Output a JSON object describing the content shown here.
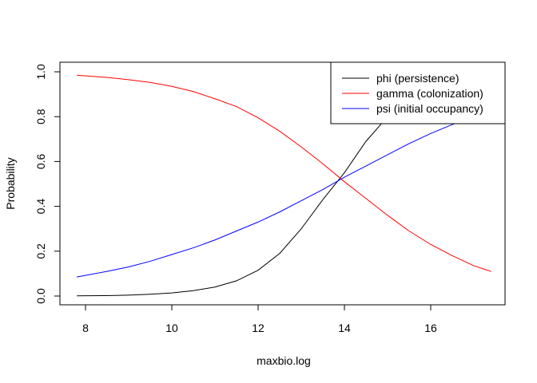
{
  "chart_data": {
    "type": "line",
    "title": "",
    "xlabel": "maxbio.log",
    "ylabel": "Probability",
    "xlim": [
      7.8,
      17.4
    ],
    "ylim": [
      0.0,
      1.0
    ],
    "xticks": [
      8,
      10,
      12,
      14,
      16
    ],
    "yticks": [
      0.0,
      0.2,
      0.4,
      0.6,
      0.8,
      1.0
    ],
    "xtick_labels": [
      "8",
      "10",
      "12",
      "14",
      "16"
    ],
    "ytick_labels": [
      "0.0",
      "0.2",
      "0.4",
      "0.6",
      "0.8",
      "1.0"
    ],
    "grid": false,
    "legend_position": "top-right",
    "series": [
      {
        "name": "phi (persistence)",
        "color": "#000000",
        "x": [
          7.8,
          8.5,
          9.0,
          9.5,
          10.0,
          10.5,
          11.0,
          11.5,
          12.0,
          12.5,
          13.0,
          13.5,
          14.0,
          14.5,
          15.0,
          15.5,
          16.0,
          16.5,
          17.0,
          17.4
        ],
        "y": [
          0.001,
          0.002,
          0.004,
          0.008,
          0.014,
          0.024,
          0.04,
          0.068,
          0.115,
          0.19,
          0.3,
          0.43,
          0.55,
          0.69,
          0.8,
          0.88,
          0.93,
          0.96,
          0.975,
          0.985
        ]
      },
      {
        "name": "gamma (colonization)",
        "color": "#ff0000",
        "x": [
          7.8,
          8.5,
          9.0,
          9.5,
          10.0,
          10.5,
          11.0,
          11.5,
          12.0,
          12.5,
          13.0,
          13.5,
          14.0,
          14.5,
          15.0,
          15.5,
          16.0,
          16.5,
          17.0,
          17.4
        ],
        "y": [
          0.985,
          0.975,
          0.965,
          0.953,
          0.935,
          0.912,
          0.88,
          0.845,
          0.795,
          0.735,
          0.665,
          0.59,
          0.51,
          0.435,
          0.36,
          0.29,
          0.23,
          0.18,
          0.135,
          0.11
        ]
      },
      {
        "name": "psi (initial occupancy)",
        "color": "#0000ff",
        "x": [
          7.8,
          8.5,
          9.0,
          9.5,
          10.0,
          10.5,
          11.0,
          11.5,
          12.0,
          12.5,
          13.0,
          13.5,
          14.0,
          14.5,
          15.0,
          15.5,
          16.0,
          16.5,
          17.0,
          17.4
        ],
        "y": [
          0.085,
          0.11,
          0.13,
          0.155,
          0.185,
          0.215,
          0.25,
          0.29,
          0.33,
          0.375,
          0.425,
          0.475,
          0.53,
          0.58,
          0.63,
          0.68,
          0.725,
          0.765,
          0.8,
          0.83
        ]
      }
    ]
  }
}
